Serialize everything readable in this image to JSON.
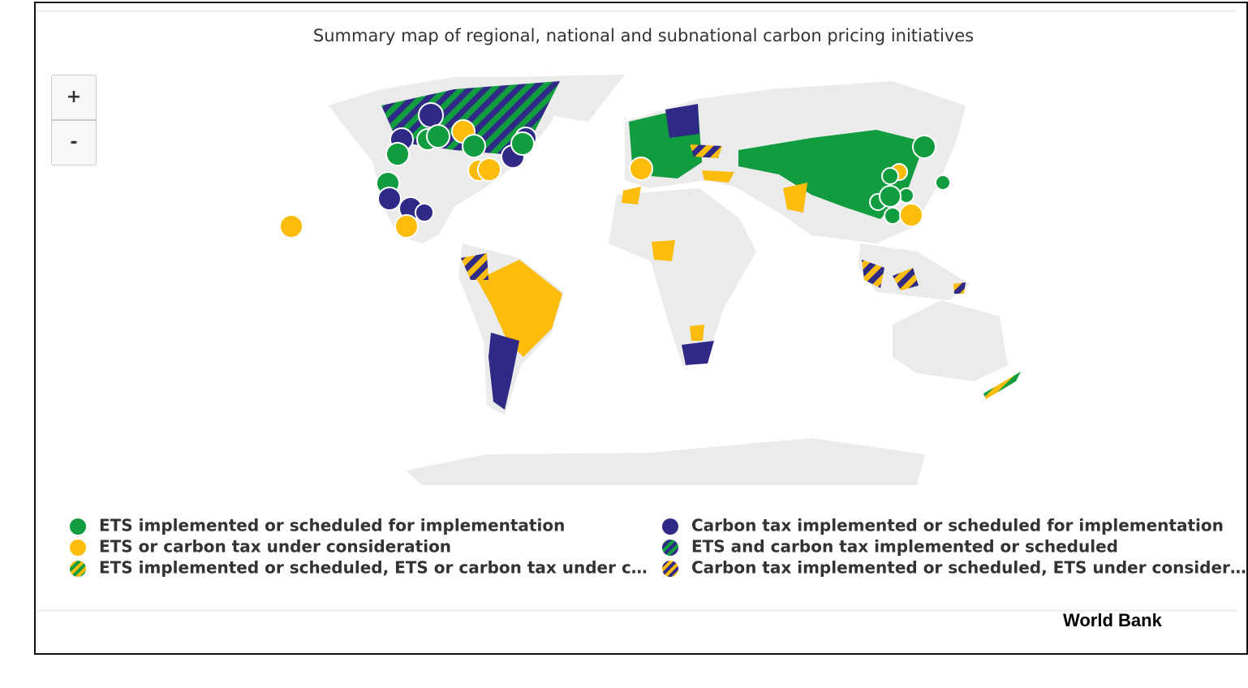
{
  "title": "Summary map of regional, national and subnational carbon pricing initiatives",
  "zoom": {
    "in": "+",
    "out": "-"
  },
  "legend": [
    {
      "label": "ETS implemented or scheduled for implementation",
      "colors": [
        "#119c3f"
      ]
    },
    {
      "label": "Carbon tax implemented or scheduled for implementation",
      "colors": [
        "#2e2a86"
      ]
    },
    {
      "label": "ETS or carbon tax under consideration",
      "colors": [
        "#fbbc0b"
      ]
    },
    {
      "label": "ETS and carbon tax implemented or scheduled",
      "colors": [
        "#2e2a86",
        "#119c3f"
      ]
    },
    {
      "label": "ETS implemented or scheduled, ETS or carbon tax under c…",
      "colors": [
        "#119c3f",
        "#fbbc0b"
      ]
    },
    {
      "label": "Carbon tax implemented or scheduled, ETS under consider…",
      "colors": [
        "#2e2a86",
        "#fbbc0b"
      ]
    }
  ],
  "credit": "World Bank"
}
